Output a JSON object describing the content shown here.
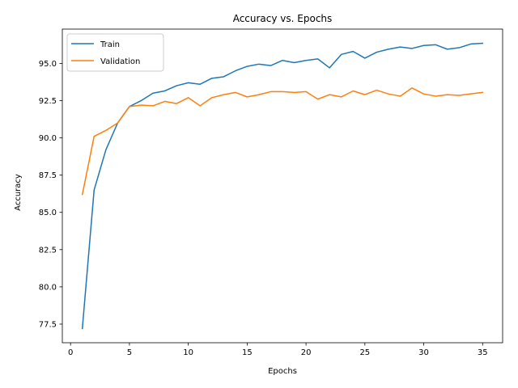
{
  "chart_data": {
    "type": "line",
    "title": "Accuracy vs. Epochs",
    "xlabel": "Epochs",
    "ylabel": "Accuracy",
    "xlim": [
      -0.7,
      36.7
    ],
    "ylim": [
      76.25,
      97.3
    ],
    "xticks": [
      0,
      5,
      10,
      15,
      20,
      25,
      30,
      35
    ],
    "xtick_labels": [
      "0",
      "5",
      "10",
      "15",
      "20",
      "25",
      "30",
      "35"
    ],
    "yticks": [
      77.5,
      80.0,
      82.5,
      85.0,
      87.5,
      90.0,
      92.5,
      95.0
    ],
    "ytick_labels": [
      "77.5",
      "80.0",
      "82.5",
      "85.0",
      "87.5",
      "90.0",
      "92.5",
      "95.0"
    ],
    "legend_position": "top-left",
    "grid": false,
    "x": [
      1,
      2,
      3,
      4,
      5,
      6,
      7,
      8,
      9,
      10,
      11,
      12,
      13,
      14,
      15,
      16,
      17,
      18,
      19,
      20,
      21,
      22,
      23,
      24,
      25,
      26,
      27,
      28,
      29,
      30,
      31,
      32,
      33,
      34,
      35
    ],
    "series": [
      {
        "name": "Train",
        "color": "#1f77b4",
        "values": [
          77.2,
          86.5,
          89.2,
          91.0,
          92.1,
          92.5,
          93.0,
          93.15,
          93.5,
          93.7,
          93.6,
          94.0,
          94.1,
          94.5,
          94.8,
          94.95,
          94.85,
          95.2,
          95.05,
          95.2,
          95.3,
          94.7,
          95.6,
          95.8,
          95.35,
          95.75,
          95.95,
          96.1,
          96.0,
          96.2,
          96.25,
          95.95,
          96.05,
          96.3,
          96.35
        ]
      },
      {
        "name": "Validation",
        "color": "#ff7f0e",
        "values": [
          86.2,
          90.1,
          90.5,
          91.0,
          92.1,
          92.2,
          92.15,
          92.45,
          92.3,
          92.7,
          92.15,
          92.7,
          92.9,
          93.05,
          92.75,
          92.9,
          93.1,
          93.1,
          93.05,
          93.1,
          92.6,
          92.9,
          92.75,
          93.15,
          92.9,
          93.2,
          92.95,
          92.8,
          93.35,
          92.95,
          92.8,
          92.9,
          92.85,
          92.95,
          93.05
        ]
      }
    ]
  }
}
